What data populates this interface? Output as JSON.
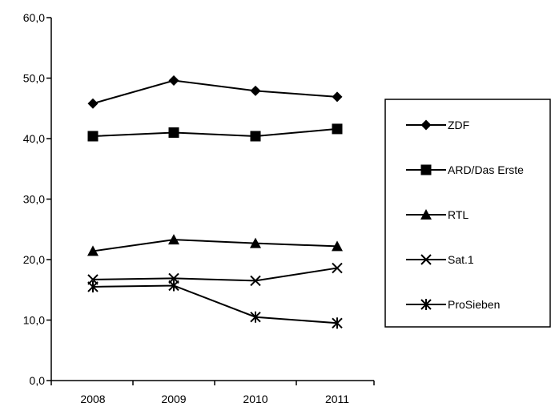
{
  "chart_data": {
    "type": "line",
    "title": "",
    "xlabel": "",
    "ylabel": "",
    "categories": [
      "2008",
      "2009",
      "2010",
      "2011"
    ],
    "ylim": [
      0,
      60
    ],
    "y_ticks": [
      "0,0",
      "10,0",
      "20,0",
      "30,0",
      "40,0",
      "50,0",
      "60,0"
    ],
    "grid": false,
    "legend_position": "right",
    "series": [
      {
        "name": "ZDF",
        "marker": "diamond",
        "values": [
          45.8,
          49.6,
          47.9,
          46.9
        ]
      },
      {
        "name": "ARD/Das Erste",
        "marker": "square",
        "values": [
          40.4,
          41.0,
          40.4,
          41.6
        ]
      },
      {
        "name": "RTL",
        "marker": "triangle",
        "values": [
          21.4,
          23.3,
          22.7,
          22.2
        ]
      },
      {
        "name": "Sat.1",
        "marker": "x",
        "values": [
          16.7,
          16.9,
          16.5,
          18.6
        ]
      },
      {
        "name": "ProSieben",
        "marker": "asterisk",
        "values": [
          15.5,
          15.7,
          10.5,
          9.5
        ]
      }
    ],
    "line_color": "#000000"
  }
}
